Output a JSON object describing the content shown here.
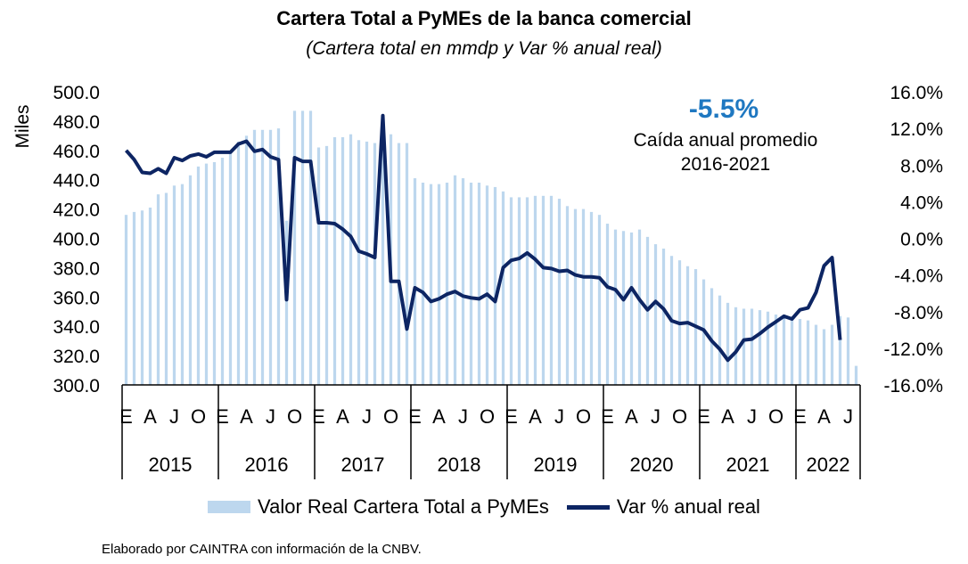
{
  "title": "Cartera Total a PyMEs de la banca comercial",
  "subtitle": "(Cartera total en mmdp y Var % anual real)",
  "annotation": {
    "value": "-5.5%",
    "line1": "Caída anual promedio",
    "line2": "2016-2021",
    "color": "#1f78c1"
  },
  "source": "Elaborado por CAINTRA con información de la CNBV.",
  "legend": {
    "bar_label": "Valor Real Cartera Total a PyMEs",
    "line_label": "Var % anual real"
  },
  "colors": {
    "bar": "#bdd7ee",
    "line": "#0d2563"
  },
  "chart_data": {
    "type": "bar+line",
    "title": "Cartera Total a PyMEs de la banca comercial",
    "subtitle": "(Cartera total en mmdp y Var % anual real)",
    "ylabel": "Miles",
    "ylim": [
      300,
      500
    ],
    "y_ticks": [
      "500.0",
      "480.0",
      "460.0",
      "440.0",
      "420.0",
      "400.0",
      "380.0",
      "360.0",
      "340.0",
      "320.0",
      "300.0"
    ],
    "y2lim": [
      -16,
      16
    ],
    "y2_ticks": [
      "16.0%",
      "12.0%",
      "8.0%",
      "4.0%",
      "0.0%",
      "-4.0%",
      "-8.0%",
      "-12.0%",
      "-16.0%"
    ],
    "month_labels": [
      "E",
      "A",
      "J",
      "O"
    ],
    "years": [
      "2015",
      "2016",
      "2017",
      "2018",
      "2019",
      "2020",
      "2021",
      "2022"
    ],
    "period": {
      "start": "2015-01",
      "end": "2022-05",
      "frequency": "monthly"
    },
    "legend_position": "bottom",
    "series": [
      {
        "name": "Valor Real Cartera Total a PyMEs",
        "type": "bar",
        "axis": "left",
        "values": [
          416,
          418,
          419,
          421,
          430,
          431,
          436,
          437,
          443,
          449,
          451,
          452,
          455,
          459,
          466,
          470,
          474,
          474,
          474,
          475,
          412,
          487,
          487,
          487,
          462,
          463,
          469,
          469,
          471,
          467,
          466,
          465,
          470,
          471,
          465,
          465,
          441,
          438,
          437,
          437,
          438,
          443,
          441,
          438,
          438,
          436,
          435,
          432,
          428,
          428,
          428,
          429,
          429,
          429,
          427,
          422,
          420,
          420,
          418,
          416,
          410,
          406,
          405,
          404,
          406,
          401,
          396,
          393,
          388,
          385,
          381,
          379,
          372,
          366,
          361,
          356,
          353,
          352,
          352,
          351,
          350,
          348,
          348,
          346,
          345,
          344,
          341,
          338,
          341,
          347,
          346,
          313
        ]
      },
      {
        "name": "Var % anual real",
        "type": "line",
        "axis": "right",
        "values": [
          9.6,
          8.6,
          7.2,
          7.1,
          7.6,
          7.1,
          8.8,
          8.5,
          9.0,
          9.2,
          8.9,
          9.4,
          9.4,
          9.4,
          10.3,
          10.6,
          9.5,
          9.7,
          8.9,
          8.6,
          -6.7,
          8.8,
          8.4,
          8.4,
          1.7,
          1.7,
          1.6,
          1.0,
          0.2,
          -1.4,
          -1.7,
          -2.1,
          13.4,
          -4.7,
          -4.7,
          -9.9,
          -5.4,
          -5.9,
          -6.9,
          -6.6,
          -6.1,
          -5.8,
          -6.3,
          -6.5,
          -6.6,
          -6.1,
          -6.9,
          -3.2,
          -2.4,
          -2.2,
          -1.6,
          -2.3,
          -3.2,
          -3.3,
          -3.6,
          -3.5,
          -4.0,
          -4.2,
          -4.2,
          -4.3,
          -5.3,
          -5.6,
          -6.7,
          -5.4,
          -6.7,
          -7.8,
          -6.9,
          -7.7,
          -9.0,
          -9.3,
          -9.2,
          -9.6,
          -10.0,
          -11.2,
          -12.1,
          -13.3,
          -12.4,
          -11.1,
          -11.0,
          -10.4,
          -9.7,
          -9.1,
          -8.5,
          -8.8,
          -7.8,
          -7.6,
          -5.9,
          -3.0,
          -2.1,
          -11.1
        ]
      }
    ]
  }
}
